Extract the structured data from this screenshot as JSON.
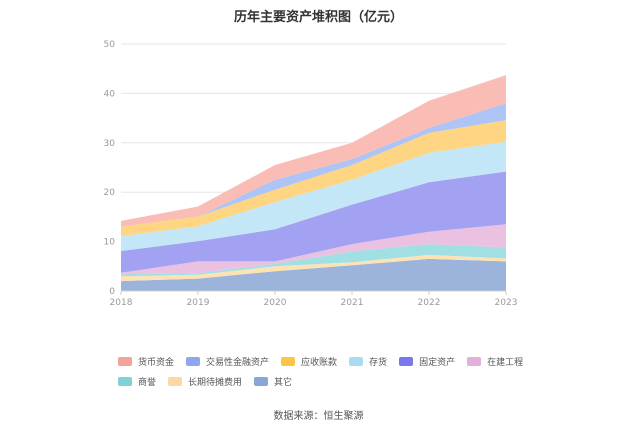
{
  "chart_data": {
    "type": "area",
    "stacked": true,
    "title": "历年主要资产堆积图（亿元）",
    "xlabel": "",
    "ylabel": "",
    "ylim": [
      0,
      50
    ],
    "yticks": [
      0,
      10,
      20,
      30,
      40,
      50
    ],
    "categories": [
      "2018",
      "2019",
      "2020",
      "2021",
      "2022",
      "2023"
    ],
    "grid": true,
    "legend_position": "bottom",
    "series": [
      {
        "name": "其它",
        "color": "#9cb4dc",
        "values": [
          2.0,
          2.5,
          4.0,
          5.2,
          6.5,
          6.0
        ]
      },
      {
        "name": "长期待摊费用",
        "color": "#fde3b4",
        "values": [
          1.0,
          0.8,
          1.0,
          0.6,
          0.8,
          0.6
        ]
      },
      {
        "name": "商誉",
        "color": "#a0dfe2",
        "values": [
          0.4,
          0.3,
          0.5,
          2.2,
          2.2,
          2.2
        ]
      },
      {
        "name": "在建工程",
        "color": "#ebc1e2",
        "values": [
          0.3,
          2.4,
          0.5,
          1.5,
          2.5,
          4.7
        ]
      },
      {
        "name": "固定资产",
        "color": "#a3a1f2",
        "values": [
          4.4,
          4.1,
          6.5,
          8.0,
          10.0,
          10.7
        ]
      },
      {
        "name": "存货",
        "color": "#c4e7f8",
        "values": [
          3.0,
          3.0,
          5.5,
          5.0,
          6.0,
          6.0
        ]
      },
      {
        "name": "应收账款",
        "color": "#fdd583",
        "values": [
          1.9,
          2.0,
          2.5,
          3.0,
          4.0,
          4.4
        ]
      },
      {
        "name": "交易性金融资产",
        "color": "#aec4f6",
        "values": [
          0.0,
          0.0,
          2.0,
          1.2,
          1.0,
          3.4
        ]
      },
      {
        "name": "货币资金",
        "color": "#f9bdb6",
        "values": [
          1.2,
          2.0,
          3.0,
          3.3,
          5.5,
          5.7
        ]
      }
    ],
    "legend": [
      {
        "name": "货币资金",
        "color": "#f4a39a"
      },
      {
        "name": "交易性金融资产",
        "color": "#8ea7ee"
      },
      {
        "name": "应收账款",
        "color": "#fbc547"
      },
      {
        "name": "存货",
        "color": "#a9dcf3"
      },
      {
        "name": "固定资产",
        "color": "#7a77ec"
      },
      {
        "name": "在建工程",
        "color": "#e2b0d9"
      },
      {
        "name": "商誉",
        "color": "#7fd3d6"
      },
      {
        "name": "长期待摊费用",
        "color": "#fcd9a3"
      },
      {
        "name": "其它",
        "color": "#8aa6d6"
      }
    ],
    "source": "数据来源：恒生聚源"
  }
}
